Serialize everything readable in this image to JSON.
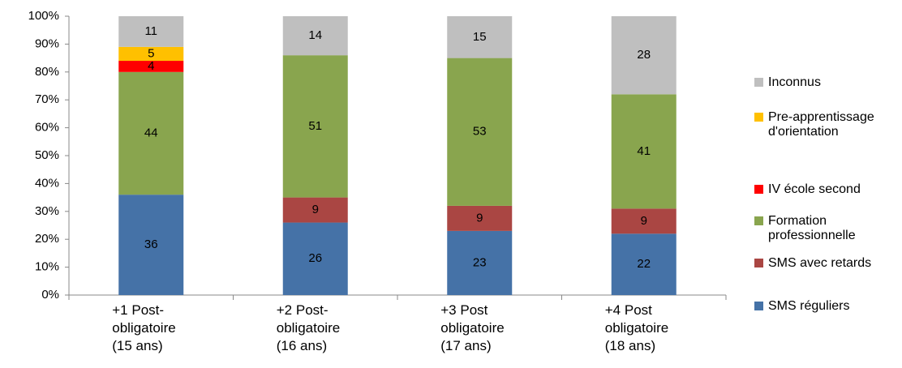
{
  "chart_data": {
    "type": "stacked_bar",
    "categories": [
      "+1 Post-\nobligatoire\n(15 ans)",
      "+2 Post-\nobligatoire\n(16 ans)",
      "+3 Post\nobligatoire\n(17 ans)",
      "+4 Post\nobligatoire\n(18 ans)"
    ],
    "series": [
      {
        "name": "SMS réguliers",
        "color": "#4572a7",
        "values": [
          36,
          26,
          23,
          22
        ]
      },
      {
        "name": "SMS avec retards",
        "color": "#aa4643",
        "values": [
          null,
          9,
          9,
          9
        ]
      },
      {
        "name": "Formation professionnelle",
        "color": "#89a54e",
        "values": [
          44,
          51,
          53,
          41
        ]
      },
      {
        "name": "IV école second",
        "color": "#ff0000",
        "values": [
          4,
          null,
          null,
          null
        ]
      },
      {
        "name": "Pre-apprentissage d'orientation",
        "color": "#ffc000",
        "values": [
          5,
          null,
          null,
          null
        ]
      },
      {
        "name": "Inconnus",
        "color": "#bfbfbf",
        "values": [
          11,
          14,
          15,
          28
        ]
      }
    ],
    "ylim": [
      0,
      100
    ],
    "yticks": [
      {
        "value": 0,
        "label": "0%"
      },
      {
        "value": 10,
        "label": "10%"
      },
      {
        "value": 20,
        "label": "20%"
      },
      {
        "value": 30,
        "label": "30%"
      },
      {
        "value": 40,
        "label": "40%"
      },
      {
        "value": 50,
        "label": "50%"
      },
      {
        "value": 60,
        "label": "60%"
      },
      {
        "value": 70,
        "label": "70%"
      },
      {
        "value": 80,
        "label": "80%"
      },
      {
        "value": 90,
        "label": "90%"
      },
      {
        "value": 100,
        "label": "100%"
      }
    ],
    "grid": false,
    "legend": "right"
  }
}
